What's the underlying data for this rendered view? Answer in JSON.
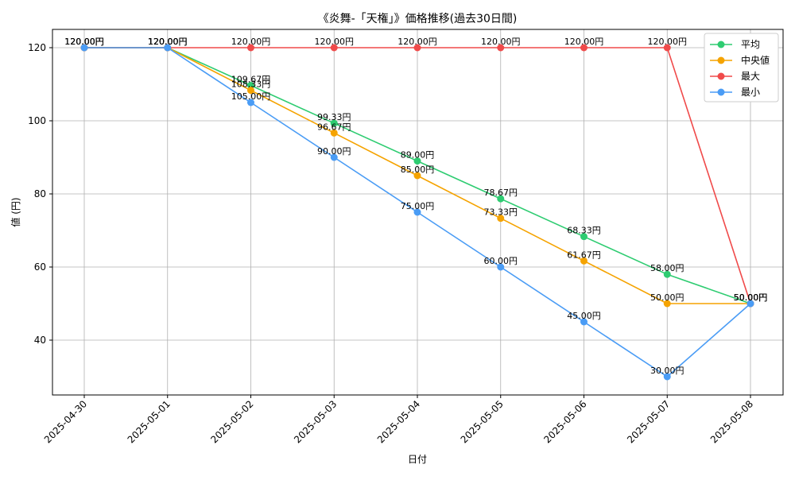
{
  "chart_data": {
    "type": "line",
    "title": "《炎舞-「天権」》価格推移(過去30日間)",
    "xlabel": "日付",
    "ylabel": "値 (円)",
    "ylim": [
      25,
      125
    ],
    "yticks": [
      40,
      60,
      80,
      100,
      120
    ],
    "grid": true,
    "legend_position": "top-right",
    "categories": [
      "2025-04-30",
      "2025-05-01",
      "2025-05-02",
      "2025-05-03",
      "2025-05-04",
      "2025-05-05",
      "2025-05-06",
      "2025-05-07",
      "2025-05-08"
    ],
    "label_suffix": "円",
    "series": [
      {
        "name": "平均",
        "color": "#2ecc71",
        "values": [
          120.0,
          120.0,
          109.67,
          99.33,
          89.0,
          78.67,
          68.33,
          58.0,
          50.0
        ],
        "labels": [
          "120.00円",
          "120.00円",
          "109.67円",
          "99.33円",
          "89.00円",
          "78.67円",
          "68.33円",
          "58.00円",
          "50.00円"
        ]
      },
      {
        "name": "中央値",
        "color": "#f5a300",
        "values": [
          120.0,
          120.0,
          108.33,
          96.67,
          85.0,
          73.33,
          61.67,
          50.0,
          50.0
        ],
        "labels": [
          "120.00円",
          "120.00円",
          "108.33円",
          "96.67円",
          "85.00円",
          "73.33円",
          "61.67円",
          "50.00円",
          "50.00円"
        ]
      },
      {
        "name": "最大",
        "color": "#f04a4a",
        "values": [
          120.0,
          120.0,
          120.0,
          120.0,
          120.0,
          120.0,
          120.0,
          120.0,
          50.0
        ],
        "labels": [
          "120.00円",
          "120.00円",
          "120.00円",
          "120.00円",
          "120.00円",
          "120.00円",
          "120.00円",
          "120.00円",
          "50.00円"
        ]
      },
      {
        "name": "最小",
        "color": "#4a9cf5",
        "values": [
          120.0,
          120.0,
          105.0,
          90.0,
          75.0,
          60.0,
          45.0,
          30.0,
          50.0
        ],
        "labels": [
          "120.00円",
          "120.00円",
          "105.00円",
          "90.00円",
          "75.00円",
          "60.00円",
          "45.00円",
          "30.00円",
          "50.00円"
        ]
      }
    ]
  }
}
